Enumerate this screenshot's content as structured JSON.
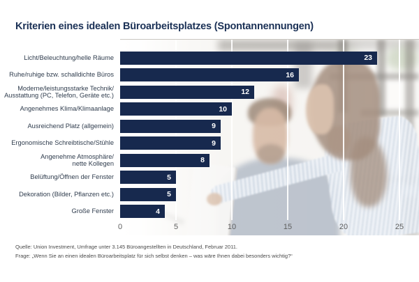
{
  "title": "Kriterien eines idealen Büroarbeitsplatzes (Spontannennungen)",
  "chart_data": {
    "type": "bar",
    "orientation": "horizontal",
    "title": "Kriterien eines idealen Büroarbeitsplatzes (Spontannennungen)",
    "categories": [
      "Licht/Beleuchtung/helle Räume",
      "Ruhe/ruhige bzw. schalldichte Büros",
      "Moderne/leistungsstarke Technik/\nAusstattung (PC, Telefon, Geräte etc.)",
      "Angenehmes Klima/Klimaanlage",
      "Ausreichend Platz (allgemein)",
      "Ergonomische Schreibtische/Stühle",
      "Angenehme Atmosphäre/\nnette Kollegen",
      "Belüftung/Öffnen der Fenster",
      "Dekoration (Bilder, Pflanzen etc.)",
      "Große Fenster"
    ],
    "values": [
      23,
      16,
      12,
      10,
      9,
      9,
      8,
      5,
      5,
      4
    ],
    "x_ticks": [
      0,
      5,
      10,
      15,
      20,
      25
    ],
    "xlim": [
      0,
      26.75
    ],
    "xlabel": "",
    "ylabel": "",
    "legend": "none",
    "grid": "vertical white gridlines over background photo",
    "bar_color": "#17294e",
    "value_label_color": "#ffffff"
  },
  "footer": {
    "source": "Quelle: Union Investment, Umfrage unter 3.145 Büroangestellten in Deutschland, Februar 2011.",
    "question": "Frage: „Wenn Sie an einen idealen Büroarbeitsplatz für sich selbst denken – was wäre Ihnen dabei besonders wichtig?“"
  },
  "photo": {
    "description": "washed-out office photo: seated man and standing woman pointing at a monitor in front of large windows"
  },
  "colors": {
    "title": "#1b3156",
    "bar": "#17294e",
    "category_label": "#2f3c4d",
    "axis_label": "#5e5e5e",
    "footer_text": "#4a4a4a",
    "background": "#ffffff"
  }
}
